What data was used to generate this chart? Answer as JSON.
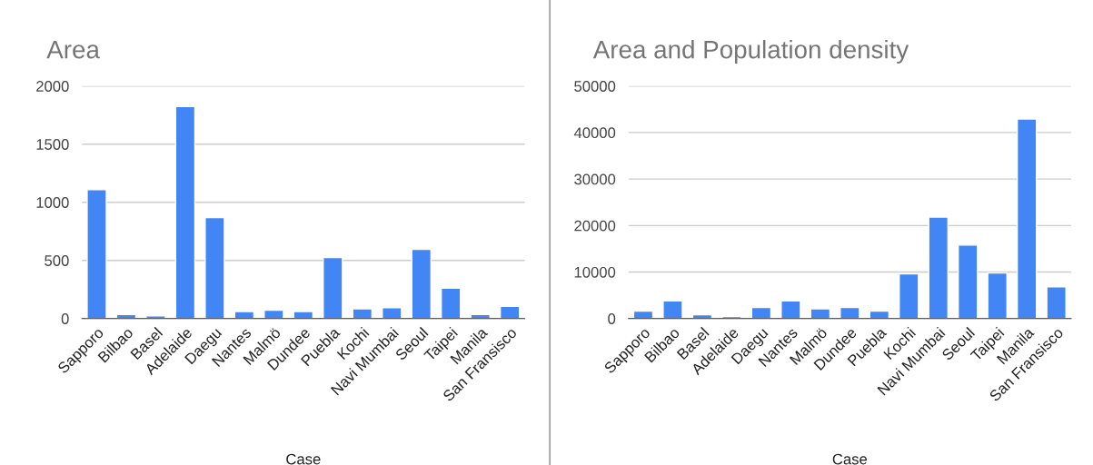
{
  "chart_data": [
    {
      "type": "bar",
      "title": "Area",
      "xlabel": "Case",
      "categories": [
        "Sapporo",
        "Bilbao",
        "Basel",
        "Adelaide",
        "Daegu",
        "Nantes",
        "Malmö",
        "Dundee",
        "Puebla",
        "Kochi",
        "Navi Mumbai",
        "Seoul",
        "Taipei",
        "Manila",
        "San Fransisco"
      ],
      "series": [
        {
          "color": "#4285f4",
          "values": [
            1108,
            34,
            23,
            1823,
            869,
            60,
            71,
            60,
            524,
            83,
            94,
            595,
            262,
            34,
            105
          ]
        }
      ],
      "ylim": [
        0,
        2000
      ],
      "yticks": [
        0,
        500,
        1000,
        1500,
        2000
      ],
      "grid": "y",
      "legend": false
    },
    {
      "type": "bar",
      "title": "Area and Population density",
      "xlabel": "Case",
      "categories": [
        "Sapporo",
        "Bilbao",
        "Basel",
        "Adelaide",
        "Daegu",
        "Nantes",
        "Malmö",
        "Dundee",
        "Puebla",
        "Kochi",
        "Navi Mumbai",
        "Seoul",
        "Taipei",
        "Manila",
        "San Fransisco"
      ],
      "series": [
        {
          "color": "#4285f4",
          "values": [
            1600,
            3800,
            800,
            400,
            2400,
            3800,
            2100,
            2400,
            1600,
            9600,
            21800,
            15800,
            9800,
            42900,
            6800
          ]
        }
      ],
      "ylim": [
        0,
        50000
      ],
      "yticks": [
        0,
        10000,
        20000,
        30000,
        40000,
        50000
      ],
      "grid": "y",
      "legend": false
    }
  ]
}
